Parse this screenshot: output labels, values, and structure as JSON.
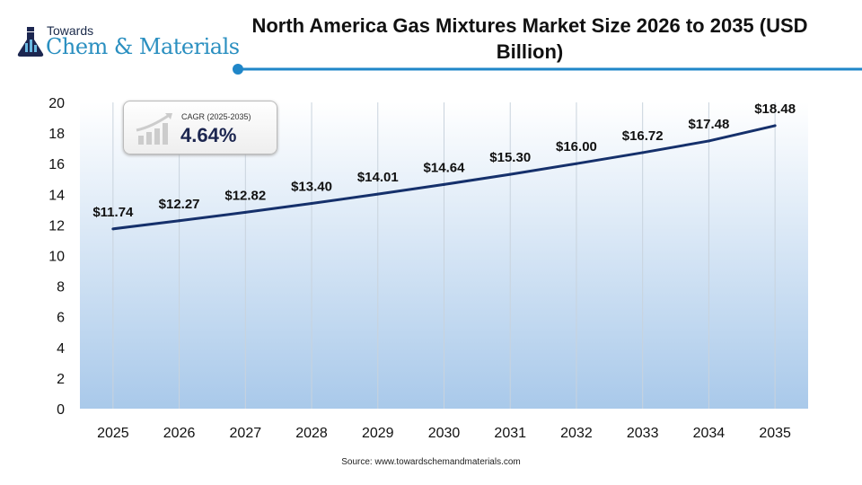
{
  "logo": {
    "line1": "Towards",
    "line2": "Chem & Materials"
  },
  "chart_data": {
    "type": "line",
    "title": "North America Gas Mixtures Market Size 2026 to 2035 (USD Billion)",
    "categories": [
      "2025",
      "2026",
      "2027",
      "2028",
      "2029",
      "2030",
      "2031",
      "2032",
      "2033",
      "2034",
      "2035"
    ],
    "values": [
      11.74,
      12.27,
      12.82,
      13.4,
      14.01,
      14.64,
      15.3,
      16.0,
      16.72,
      17.48,
      18.48
    ],
    "data_labels": [
      "$11.74",
      "$12.27",
      "$12.82",
      "$13.40",
      "$14.01",
      "$14.64",
      "$15.30",
      "$16.00",
      "$16.72",
      "$17.48",
      "$18.48"
    ],
    "ylim": [
      0,
      20
    ],
    "yticks": [
      0,
      2,
      4,
      6,
      8,
      10,
      12,
      14,
      16,
      18,
      20
    ],
    "grid": "vertical",
    "line_color": "#15306b",
    "fill_color": "#a9c9ea",
    "xlabel": "",
    "ylabel": ""
  },
  "cagr": {
    "label": "CAGR (2025-2035)",
    "value": "4.64%"
  },
  "source": "Source: www.towardschemandmaterials.com"
}
